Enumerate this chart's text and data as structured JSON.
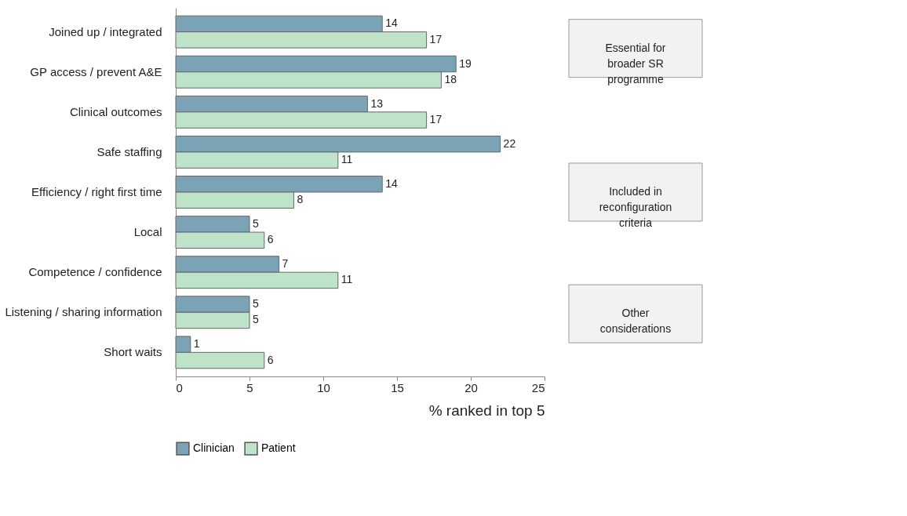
{
  "chart_data": {
    "type": "bar",
    "orientation": "horizontal",
    "categories": [
      "Joined up / integrated",
      "GP access / prevent A&E",
      "Clinical outcomes",
      "Safe staffing",
      "Efficiency / right first time",
      "Local",
      "Competence / confidence",
      "Listening / sharing information",
      "Short waits"
    ],
    "series": [
      {
        "name": "Clinician",
        "color": "#7aa3b6",
        "values": [
          14,
          19,
          13,
          22,
          14,
          5,
          7,
          5,
          1
        ]
      },
      {
        "name": "Patient",
        "color": "#bfe3c8",
        "values": [
          17,
          18,
          17,
          11,
          8,
          6,
          11,
          5,
          6
        ]
      }
    ],
    "xlim": [
      0,
      25
    ],
    "xticks": [
      0,
      5,
      10,
      15,
      20,
      25
    ],
    "xlabel": "% ranked in top 5",
    "data_labels": true,
    "legend": "bottom left",
    "grid": false,
    "annotations": [
      "Essential for\nbroader SR\nprogramme",
      "Included in\nreconfiguration\ncriteria",
      "Other\nconsiderations"
    ]
  }
}
